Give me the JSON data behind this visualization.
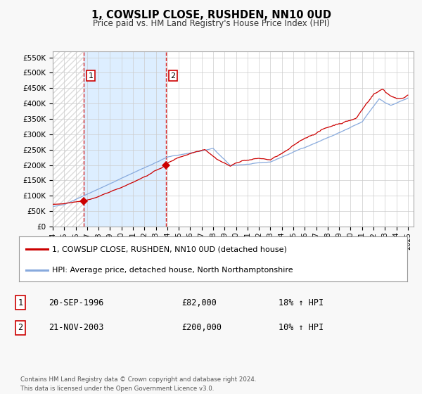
{
  "title": "1, COWSLIP CLOSE, RUSHDEN, NN10 0UD",
  "subtitle": "Price paid vs. HM Land Registry's House Price Index (HPI)",
  "background_color": "#f8f8f8",
  "plot_bg_color": "#ffffff",
  "grid_color": "#cccccc",
  "red_line_color": "#cc0000",
  "blue_line_color": "#88aadd",
  "shaded_region_color": "#ddeeff",
  "hatch_color": "#dddddd",
  "sale1_date": 1996.72,
  "sale1_price": 82000,
  "sale1_label": "1",
  "sale2_date": 2003.89,
  "sale2_price": 200000,
  "sale2_label": "2",
  "legend_line1": "1, COWSLIP CLOSE, RUSHDEN, NN10 0UD (detached house)",
  "legend_line2": "HPI: Average price, detached house, North Northamptonshire",
  "table_row1": [
    "1",
    "20-SEP-1996",
    "£82,000",
    "18% ↑ HPI"
  ],
  "table_row2": [
    "2",
    "21-NOV-2003",
    "£200,000",
    "10% ↑ HPI"
  ],
  "footer": "Contains HM Land Registry data © Crown copyright and database right 2024.\nThis data is licensed under the Open Government Licence v3.0.",
  "ylim": [
    0,
    570000
  ],
  "xlim_start": 1994.0,
  "xlim_end": 2025.5,
  "yticks": [
    0,
    50000,
    100000,
    150000,
    200000,
    250000,
    300000,
    350000,
    400000,
    450000,
    500000,
    550000
  ],
  "ytick_labels": [
    "£0",
    "£50K",
    "£100K",
    "£150K",
    "£200K",
    "£250K",
    "£300K",
    "£350K",
    "£400K",
    "£450K",
    "£500K",
    "£550K"
  ],
  "xticks": [
    1994,
    1995,
    1996,
    1997,
    1998,
    1999,
    2000,
    2001,
    2002,
    2003,
    2004,
    2005,
    2006,
    2007,
    2008,
    2009,
    2010,
    2011,
    2012,
    2013,
    2014,
    2015,
    2016,
    2017,
    2018,
    2019,
    2020,
    2021,
    2022,
    2023,
    2024,
    2025
  ]
}
